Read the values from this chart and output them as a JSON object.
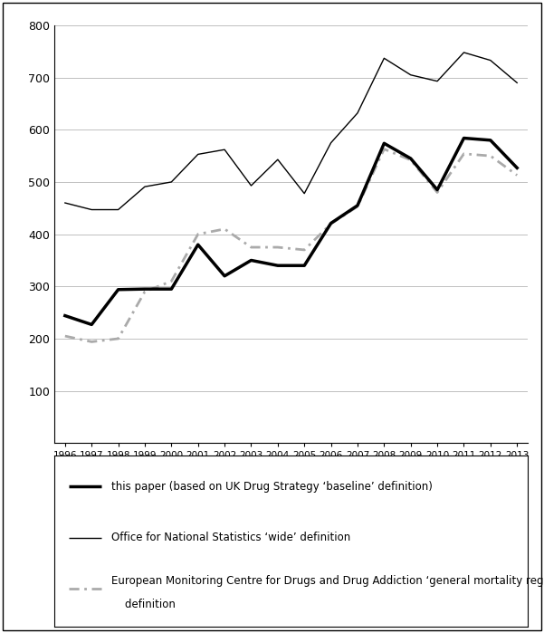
{
  "years": [
    1996,
    1997,
    1998,
    1999,
    2000,
    2001,
    2002,
    2003,
    2004,
    2005,
    2006,
    2007,
    2008,
    2009,
    2010,
    2011,
    2012,
    2013
  ],
  "this_paper": [
    244,
    227,
    294,
    295,
    295,
    380,
    320,
    350,
    340,
    340,
    421,
    455,
    574,
    545,
    485,
    584,
    580,
    527
  ],
  "ons_wide": [
    460,
    447,
    447,
    491,
    500,
    553,
    562,
    493,
    543,
    478,
    575,
    632,
    737,
    705,
    693,
    748,
    733,
    690
  ],
  "emcdda": [
    205,
    194,
    200,
    290,
    310,
    400,
    410,
    375,
    375,
    370,
    420,
    453,
    563,
    542,
    480,
    554,
    550,
    513
  ],
  "ylim": [
    0,
    800
  ],
  "yticks": [
    0,
    100,
    200,
    300,
    400,
    500,
    600,
    700,
    800
  ],
  "legend_label_1": "this paper (based on UK Drug Strategy ‘baseline’ definition)",
  "legend_label_2": "Office for National Statistics ‘wide’ definition",
  "legend_label_3a": "European Monitoring Centre for Drugs and Drug Addiction ‘general mortality register’",
  "legend_label_3b": "definition",
  "this_paper_color": "#000000",
  "ons_color": "#000000",
  "emcdda_color": "#aaaaaa",
  "background_color": "#ffffff",
  "grid_color": "#c0c0c0"
}
